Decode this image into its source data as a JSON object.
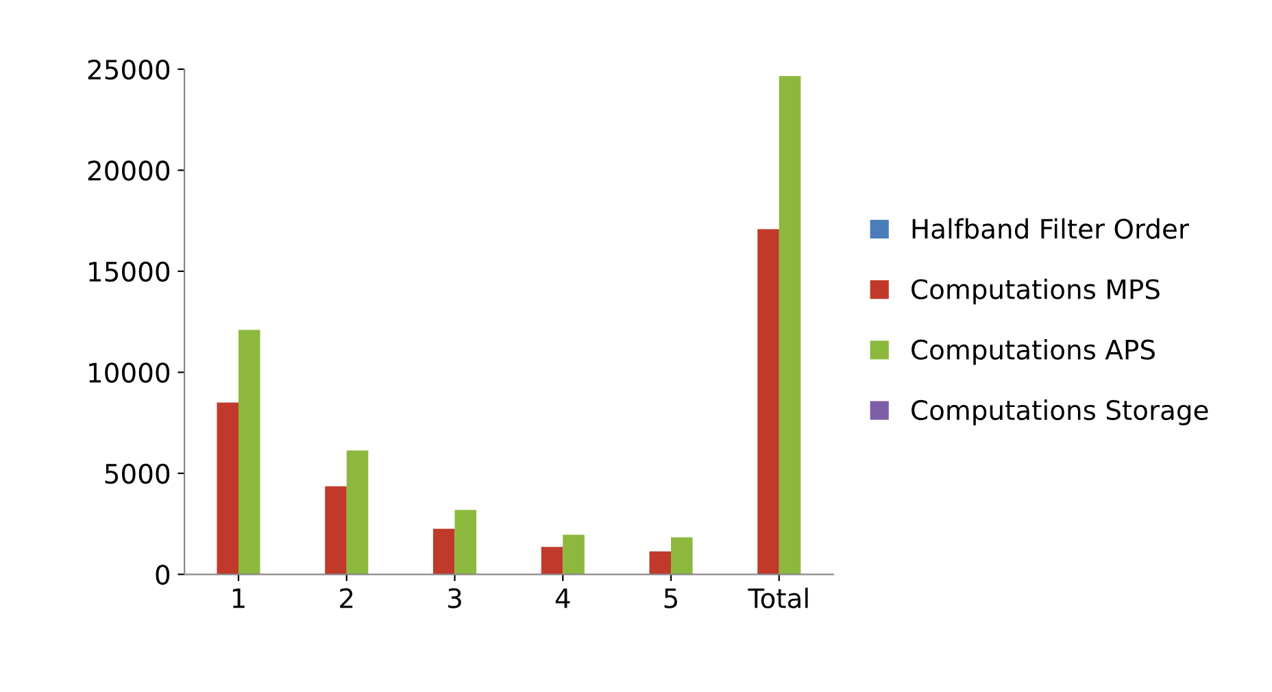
{
  "chart_data": {
    "type": "bar",
    "categories": [
      "1",
      "2",
      "3",
      "4",
      "5",
      "Total"
    ],
    "series": [
      {
        "name": "Halfband Filter Order",
        "color": "#4a7ebb",
        "values": [
          0,
          0,
          0,
          0,
          0,
          0
        ]
      },
      {
        "name": "Computations MPS",
        "color": "#c0392b",
        "values": [
          8500,
          4360,
          2260,
          1360,
          1140,
          17080
        ]
      },
      {
        "name": "Computations APS",
        "color": "#8cb83e",
        "values": [
          12100,
          6130,
          3190,
          1960,
          1830,
          24660
        ]
      },
      {
        "name": "Computations Storage",
        "color": "#7d5fa8",
        "values": [
          0,
          0,
          0,
          0,
          0,
          0
        ]
      }
    ],
    "ylim": [
      0,
      25000
    ],
    "yticks": [
      0,
      5000,
      10000,
      15000,
      20000,
      25000
    ],
    "grid": false,
    "legend": "right"
  }
}
